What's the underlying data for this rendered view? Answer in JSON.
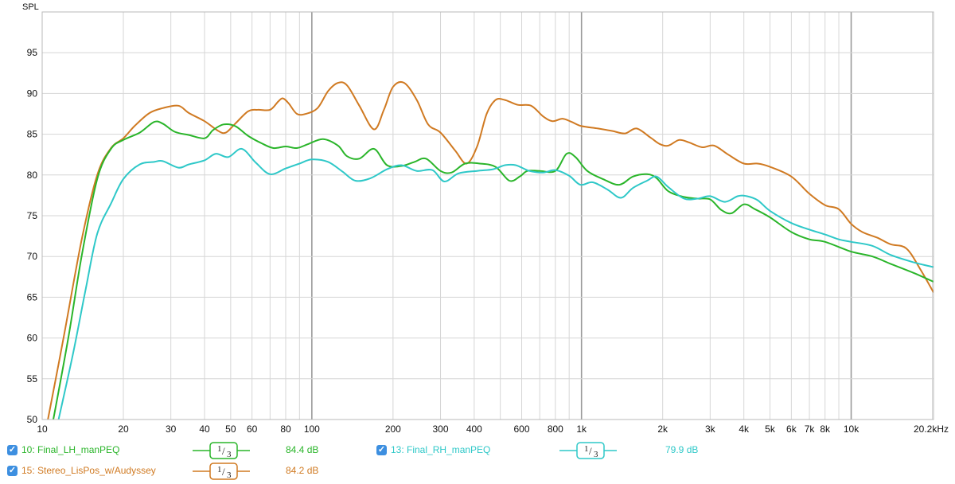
{
  "chart_data": {
    "type": "line",
    "title": "",
    "ylabel": "SPL",
    "xlabel": "",
    "x_scale": "log",
    "xlim": [
      10,
      20200
    ],
    "ylim": [
      50,
      100
    ],
    "grid": true,
    "y_ticks": [
      {
        "value": 50,
        "label": "50"
      },
      {
        "value": 55,
        "label": "55"
      },
      {
        "value": 60,
        "label": "60"
      },
      {
        "value": 65,
        "label": "65"
      },
      {
        "value": 70,
        "label": "70"
      },
      {
        "value": 75,
        "label": "75"
      },
      {
        "value": 80,
        "label": "80"
      },
      {
        "value": 85,
        "label": "85"
      },
      {
        "value": 90,
        "label": "90"
      },
      {
        "value": 95,
        "label": "95"
      }
    ],
    "x_ticks": [
      {
        "value": 10,
        "label": "10"
      },
      {
        "value": 20,
        "label": "20"
      },
      {
        "value": 30,
        "label": "30"
      },
      {
        "value": 40,
        "label": "40"
      },
      {
        "value": 50,
        "label": "50"
      },
      {
        "value": 60,
        "label": "60"
      },
      {
        "value": 80,
        "label": "80"
      },
      {
        "value": 100,
        "label": "100"
      },
      {
        "value": 200,
        "label": "200"
      },
      {
        "value": 300,
        "label": "300"
      },
      {
        "value": 400,
        "label": "400"
      },
      {
        "value": 600,
        "label": "600"
      },
      {
        "value": 800,
        "label": "800"
      },
      {
        "value": 1000,
        "label": "1k"
      },
      {
        "value": 2000,
        "label": "2k"
      },
      {
        "value": 3000,
        "label": "3k"
      },
      {
        "value": 4000,
        "label": "4k"
      },
      {
        "value": 5000,
        "label": "5k"
      },
      {
        "value": 6000,
        "label": "6k"
      },
      {
        "value": 7000,
        "label": "7k"
      },
      {
        "value": 8000,
        "label": "8k"
      },
      {
        "value": 10000,
        "label": "10k"
      },
      {
        "value": 20200,
        "label": "20.2kHz"
      }
    ],
    "series": [
      {
        "name": "Stereo_LisPos_w/Audyssey",
        "color": "#d07a22",
        "points": [
          [
            10.5,
            50
          ],
          [
            12,
            60
          ],
          [
            14,
            72
          ],
          [
            16,
            80
          ],
          [
            18,
            83.3
          ],
          [
            20,
            84.5
          ],
          [
            22,
            86
          ],
          [
            25,
            87.6
          ],
          [
            28,
            88.2
          ],
          [
            32,
            88.5
          ],
          [
            35,
            87.6
          ],
          [
            40,
            86.6
          ],
          [
            45,
            85.4
          ],
          [
            48,
            85.2
          ],
          [
            52,
            86.3
          ],
          [
            58,
            87.8
          ],
          [
            63,
            88
          ],
          [
            70,
            88
          ],
          [
            75,
            89
          ],
          [
            78,
            89.4
          ],
          [
            82,
            88.8
          ],
          [
            88,
            87.5
          ],
          [
            95,
            87.5
          ],
          [
            105,
            88.2
          ],
          [
            115,
            90.3
          ],
          [
            125,
            91.3
          ],
          [
            135,
            91
          ],
          [
            150,
            88.5
          ],
          [
            170,
            85.6
          ],
          [
            185,
            88
          ],
          [
            200,
            90.8
          ],
          [
            220,
            91.3
          ],
          [
            245,
            89.2
          ],
          [
            270,
            86.2
          ],
          [
            300,
            85.2
          ],
          [
            340,
            83
          ],
          [
            375,
            81.4
          ],
          [
            410,
            83.5
          ],
          [
            445,
            87.5
          ],
          [
            480,
            89.2
          ],
          [
            520,
            89.2
          ],
          [
            580,
            88.6
          ],
          [
            650,
            88.5
          ],
          [
            720,
            87.2
          ],
          [
            780,
            86.6
          ],
          [
            850,
            86.9
          ],
          [
            920,
            86.5
          ],
          [
            1000,
            86
          ],
          [
            1150,
            85.7
          ],
          [
            1300,
            85.4
          ],
          [
            1450,
            85.1
          ],
          [
            1600,
            85.7
          ],
          [
            1800,
            84.6
          ],
          [
            1950,
            83.8
          ],
          [
            2100,
            83.6
          ],
          [
            2300,
            84.3
          ],
          [
            2500,
            84
          ],
          [
            2800,
            83.4
          ],
          [
            3100,
            83.6
          ],
          [
            3500,
            82.5
          ],
          [
            4000,
            81.4
          ],
          [
            4500,
            81.4
          ],
          [
            5000,
            81
          ],
          [
            6000,
            79.8
          ],
          [
            7000,
            77.7
          ],
          [
            8000,
            76.3
          ],
          [
            9000,
            75.8
          ],
          [
            10000,
            74
          ],
          [
            11000,
            73
          ],
          [
            12500,
            72.3
          ],
          [
            14000,
            71.5
          ],
          [
            16000,
            71
          ],
          [
            18000,
            68.5
          ],
          [
            20200,
            65.6
          ]
        ]
      },
      {
        "name": "Final_LH_manPEQ",
        "color": "#2ab52a",
        "points": [
          [
            11,
            50
          ],
          [
            12.5,
            60
          ],
          [
            14,
            70
          ],
          [
            16,
            79.5
          ],
          [
            18,
            83.2
          ],
          [
            20,
            84.3
          ],
          [
            23,
            85.2
          ],
          [
            26,
            86.5
          ],
          [
            28,
            86.3
          ],
          [
            31,
            85.3
          ],
          [
            35,
            84.9
          ],
          [
            40,
            84.5
          ],
          [
            43,
            85.5
          ],
          [
            47,
            86.2
          ],
          [
            52,
            86
          ],
          [
            58,
            84.8
          ],
          [
            65,
            83.9
          ],
          [
            72,
            83.3
          ],
          [
            80,
            83.5
          ],
          [
            88,
            83.3
          ],
          [
            97,
            83.8
          ],
          [
            110,
            84.4
          ],
          [
            125,
            83.6
          ],
          [
            135,
            82.3
          ],
          [
            150,
            82
          ],
          [
            170,
            83.2
          ],
          [
            190,
            81.2
          ],
          [
            215,
            81.1
          ],
          [
            240,
            81.6
          ],
          [
            265,
            82
          ],
          [
            300,
            80.5
          ],
          [
            330,
            80.3
          ],
          [
            370,
            81.4
          ],
          [
            420,
            81.4
          ],
          [
            480,
            81
          ],
          [
            540,
            79.3
          ],
          [
            590,
            79.8
          ],
          [
            630,
            80.5
          ],
          [
            700,
            80.5
          ],
          [
            800,
            80.5
          ],
          [
            880,
            82.6
          ],
          [
            950,
            82.2
          ],
          [
            1050,
            80.5
          ],
          [
            1200,
            79.5
          ],
          [
            1380,
            78.8
          ],
          [
            1550,
            79.8
          ],
          [
            1750,
            80.1
          ],
          [
            1900,
            79.6
          ],
          [
            2100,
            78
          ],
          [
            2400,
            77.3
          ],
          [
            2700,
            77.1
          ],
          [
            3000,
            77
          ],
          [
            3300,
            75.7
          ],
          [
            3600,
            75.3
          ],
          [
            4000,
            76.4
          ],
          [
            4400,
            75.8
          ],
          [
            5000,
            74.8
          ],
          [
            6000,
            73
          ],
          [
            7000,
            72.1
          ],
          [
            8000,
            71.8
          ],
          [
            10000,
            70.6
          ],
          [
            12000,
            70
          ],
          [
            14000,
            69.1
          ],
          [
            17000,
            68
          ],
          [
            20200,
            66.9
          ]
        ]
      },
      {
        "name": "Final_RH_manPEQ",
        "color": "#2ec8c8",
        "points": [
          [
            11.5,
            50
          ],
          [
            13,
            58
          ],
          [
            14.5,
            66
          ],
          [
            16,
            72.8
          ],
          [
            18,
            76.5
          ],
          [
            20,
            79.5
          ],
          [
            23,
            81.3
          ],
          [
            26,
            81.6
          ],
          [
            28,
            81.7
          ],
          [
            32,
            80.9
          ],
          [
            35,
            81.3
          ],
          [
            40,
            81.8
          ],
          [
            44,
            82.6
          ],
          [
            49,
            82.2
          ],
          [
            55,
            83.2
          ],
          [
            62,
            81.5
          ],
          [
            70,
            80.1
          ],
          [
            80,
            80.8
          ],
          [
            90,
            81.4
          ],
          [
            100,
            81.9
          ],
          [
            115,
            81.6
          ],
          [
            130,
            80.4
          ],
          [
            145,
            79.3
          ],
          [
            165,
            79.6
          ],
          [
            190,
            80.7
          ],
          [
            215,
            81.2
          ],
          [
            245,
            80.5
          ],
          [
            280,
            80.6
          ],
          [
            310,
            79.2
          ],
          [
            350,
            80.2
          ],
          [
            410,
            80.5
          ],
          [
            470,
            80.7
          ],
          [
            520,
            81.2
          ],
          [
            570,
            81.2
          ],
          [
            640,
            80.5
          ],
          [
            720,
            80.3
          ],
          [
            800,
            80.6
          ],
          [
            900,
            79.9
          ],
          [
            990,
            78.8
          ],
          [
            1100,
            79.1
          ],
          [
            1250,
            78.2
          ],
          [
            1400,
            77.2
          ],
          [
            1550,
            78.4
          ],
          [
            1750,
            79.3
          ],
          [
            1900,
            79.8
          ],
          [
            2100,
            78.5
          ],
          [
            2400,
            77.1
          ],
          [
            2700,
            77.1
          ],
          [
            3000,
            77.4
          ],
          [
            3400,
            76.7
          ],
          [
            3800,
            77.4
          ],
          [
            4100,
            77.4
          ],
          [
            4500,
            76.9
          ],
          [
            5000,
            75.6
          ],
          [
            6000,
            74.1
          ],
          [
            7000,
            73.3
          ],
          [
            8000,
            72.7
          ],
          [
            9000,
            72.1
          ],
          [
            10000,
            71.8
          ],
          [
            12000,
            71.3
          ],
          [
            14000,
            70.2
          ],
          [
            17000,
            69.3
          ],
          [
            20200,
            68.7
          ]
        ]
      }
    ]
  },
  "legend": {
    "items": [
      {
        "label": "10: Final_LH_manPEQ",
        "smoothing": "1/3",
        "level": "84.4 dB",
        "color": "#2ab52a"
      },
      {
        "label": "13: Final_RH_manPEQ",
        "smoothing": "1/3",
        "level": "79.9 dB",
        "color": "#2ec8c8"
      },
      {
        "label": "15: Stereo_LisPos_w/Audyssey",
        "smoothing": "1/3",
        "level": "84.2 dB",
        "color": "#d07a22"
      }
    ]
  }
}
